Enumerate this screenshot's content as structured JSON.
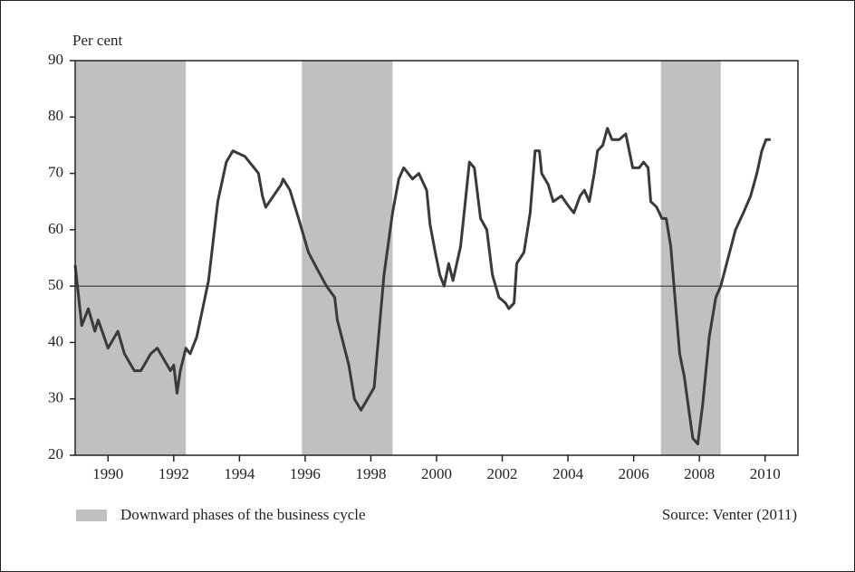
{
  "chart_data": {
    "type": "line",
    "y_label": "Per cent",
    "x": [
      1989.0,
      1989.2,
      1989.4,
      1989.6,
      1989.7,
      1990.0,
      1990.3,
      1990.5,
      1990.8,
      1991.0,
      1991.3,
      1991.5,
      1991.7,
      1991.9,
      1992.0,
      1992.1,
      1992.2,
      1992.37,
      1992.5,
      1992.7,
      1993.06,
      1993.34,
      1993.6,
      1993.8,
      1994.17,
      1994.58,
      1994.7,
      1994.8,
      1995.27,
      1995.33,
      1995.54,
      1995.8,
      1996.1,
      1996.37,
      1996.65,
      1996.9,
      1996.98,
      1997.33,
      1997.5,
      1997.7,
      1997.9,
      1998.1,
      1998.25,
      1998.4,
      1998.66,
      1998.85,
      1999.0,
      1999.27,
      1999.46,
      1999.7,
      1999.8,
      1999.96,
      2000.1,
      2000.23,
      2000.37,
      2000.5,
      2000.73,
      2000.84,
      2001.0,
      2001.15,
      2001.34,
      2001.53,
      2001.7,
      2001.9,
      2002.1,
      2002.2,
      2002.36,
      2002.44,
      2002.66,
      2002.85,
      2003.0,
      2003.13,
      2003.2,
      2003.4,
      2003.55,
      2003.8,
      2004.04,
      2004.18,
      2004.37,
      2004.5,
      2004.65,
      2004.8,
      2004.9,
      2005.06,
      2005.2,
      2005.34,
      2005.56,
      2005.76,
      2005.83,
      2005.97,
      2006.17,
      2006.3,
      2006.44,
      2006.52,
      2006.7,
      2006.86,
      2006.99,
      2007.13,
      2007.27,
      2007.4,
      2007.54,
      2007.68,
      2007.8,
      2007.95,
      2008.1,
      2008.3,
      2008.5,
      2008.65,
      2008.92,
      2009.1,
      2009.34,
      2009.56,
      2009.75,
      2009.9,
      2010.03,
      2010.17
    ],
    "series": [
      {
        "name": "Per cent",
        "color": "#3a3a3a",
        "values": [
          53.7,
          43,
          46,
          42,
          44,
          39,
          42,
          38,
          35,
          35,
          38,
          39,
          37,
          35,
          36,
          31,
          35,
          39,
          38,
          41,
          51,
          65,
          72,
          74,
          73,
          70,
          66,
          64,
          68,
          69,
          67,
          62,
          56,
          53,
          50,
          48,
          44,
          36,
          30,
          28,
          30,
          32,
          42,
          52,
          63,
          69,
          71,
          69,
          70,
          67,
          61,
          56,
          52,
          50,
          54,
          51,
          57,
          63,
          72,
          71,
          62,
          60,
          52,
          48,
          47,
          46,
          47,
          54,
          56,
          63,
          74,
          74,
          70,
          68,
          65,
          66,
          64,
          63,
          66,
          67,
          65,
          70,
          74,
          75,
          78,
          76,
          76,
          77,
          75,
          71,
          71,
          72,
          71,
          65,
          64,
          62,
          62,
          57,
          47,
          38,
          34,
          28,
          23,
          22,
          29,
          41,
          48,
          50,
          56,
          60,
          63,
          66,
          70,
          74,
          76,
          76
        ]
      }
    ],
    "xlim": [
      1989,
      2011
    ],
    "ylim": [
      20,
      90
    ],
    "xticks": [
      1990,
      1992,
      1994,
      1996,
      1998,
      2000,
      2002,
      2004,
      2006,
      2008,
      2010
    ],
    "yticks": [
      20,
      30,
      40,
      50,
      60,
      70,
      80,
      90
    ],
    "reference_line": 50,
    "shaded_regions": [
      [
        1989.0,
        1992.37
      ],
      [
        1995.9,
        1998.66
      ],
      [
        2006.83,
        2008.65
      ]
    ],
    "shade_color": "#c0c0c0",
    "legend_label": "Downward phases of the business cycle",
    "source": "Source: Venter (2011)"
  }
}
